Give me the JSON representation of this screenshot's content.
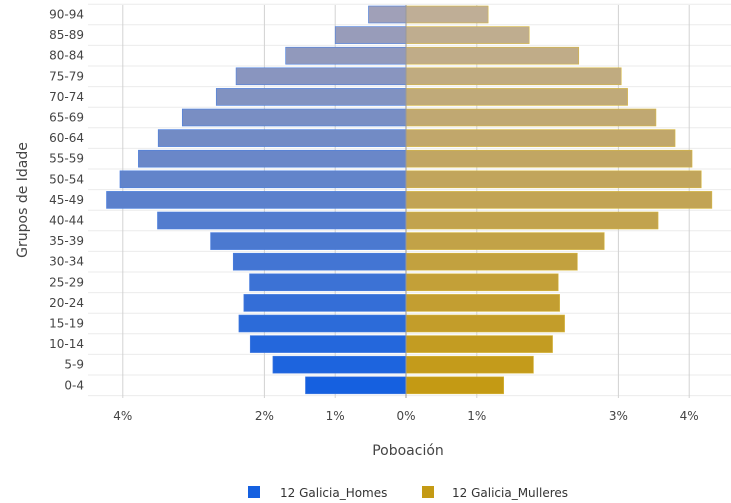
{
  "chart_data": {
    "type": "bar",
    "orientation": "horizontal-diverging",
    "title": "",
    "xlabel": "Poboación",
    "ylabel": "Grupos de Idade",
    "xlim": [
      -4.0,
      4.0
    ],
    "x_ticks": [
      {
        "value": -4,
        "label": "4%"
      },
      {
        "value": -2,
        "label": "2%"
      },
      {
        "value": -1,
        "label": "1%"
      },
      {
        "value": 0,
        "label": "0%"
      },
      {
        "value": 1,
        "label": "1%"
      },
      {
        "value": 3,
        "label": "3%"
      },
      {
        "value": 4,
        "label": "4%"
      }
    ],
    "grid": true,
    "legend_position": "bottom-center",
    "categories": [
      "90-94",
      "85-89",
      "80-84",
      "75-79",
      "70-74",
      "65-69",
      "60-64",
      "55-59",
      "50-54",
      "45-49",
      "40-44",
      "35-39",
      "30-34",
      "25-29",
      "20-24",
      "15-19",
      "10-14",
      "5-9",
      "0-4"
    ],
    "series": [
      {
        "name": "12 Galicia_Homes",
        "side": "left",
        "color_top": "#a0a0b8",
        "color_bottom": "#1560e0",
        "values": [
          0.53,
          1.0,
          1.7,
          2.4,
          2.68,
          3.16,
          3.5,
          3.78,
          4.04,
          4.23,
          3.51,
          2.76,
          2.44,
          2.21,
          2.29,
          2.36,
          2.2,
          1.88,
          1.42
        ]
      },
      {
        "name": "12 Galicia_Mulleres",
        "side": "right",
        "color_top": "#bfae96",
        "color_bottom": "#c49a14",
        "values": [
          1.16,
          1.74,
          2.44,
          3.04,
          3.13,
          3.53,
          3.8,
          4.04,
          4.17,
          4.32,
          3.56,
          2.8,
          2.42,
          2.15,
          2.17,
          2.24,
          2.07,
          1.8,
          1.38
        ]
      }
    ]
  }
}
